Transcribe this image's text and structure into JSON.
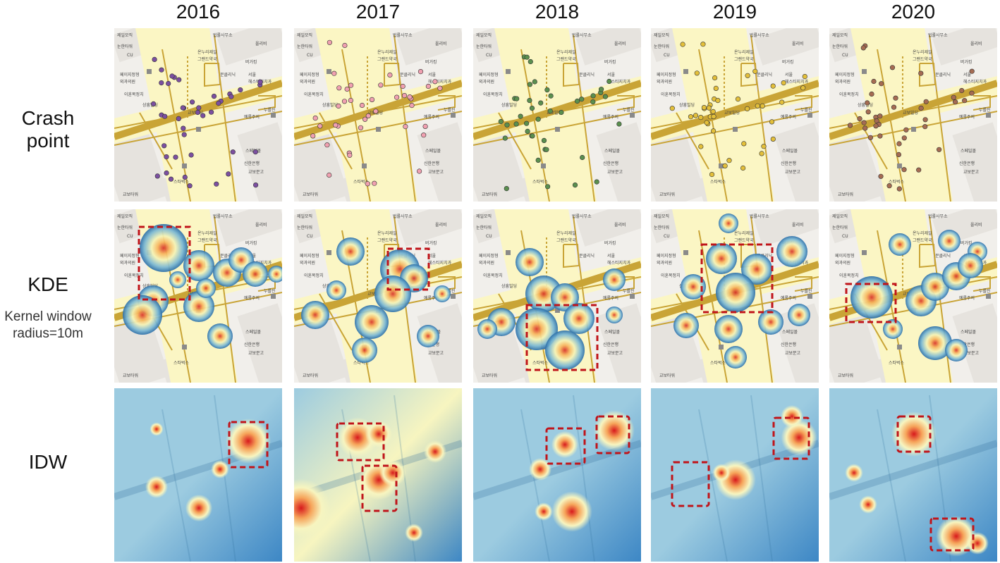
{
  "years": [
    "2016",
    "2017",
    "2018",
    "2019",
    "2020"
  ],
  "rows": [
    {
      "label": "Crash\npoint",
      "sub": ""
    },
    {
      "label": "KDE",
      "sub": "Kernel window\nradius=10m"
    },
    {
      "label": "IDW",
      "sub": ""
    }
  ],
  "map_labels": [
    "제일모직",
    "법률사무소",
    "올리비",
    "눈한타워",
    "온누리제일",
    "그랜드약국",
    "CU",
    "버거킹",
    "페이지정형",
    "외과의원",
    "문클리닉",
    "서울",
    "헤스티지치과",
    "이훈복정치",
    "상흥빌딩",
    "교보빌딩",
    "누를진",
    "예롱주의",
    "스페일몰",
    "신한은행",
    "교보문고",
    "스타벅스",
    "교보타워"
  ],
  "crash_colors": [
    "#7b4fa0",
    "#f0a0b0",
    "#5a8f4e",
    "#e3bf3a",
    "#a56b52"
  ],
  "kde_ramp": [
    "#2b6ea8",
    "#79b7d4",
    "#f5f3b6",
    "#f7b55e",
    "#d73027"
  ],
  "idw_ramp": [
    "#3d87c5",
    "#9ccbe0",
    "#f7f5c0",
    "#f6a45a",
    "#d7191c"
  ]
}
